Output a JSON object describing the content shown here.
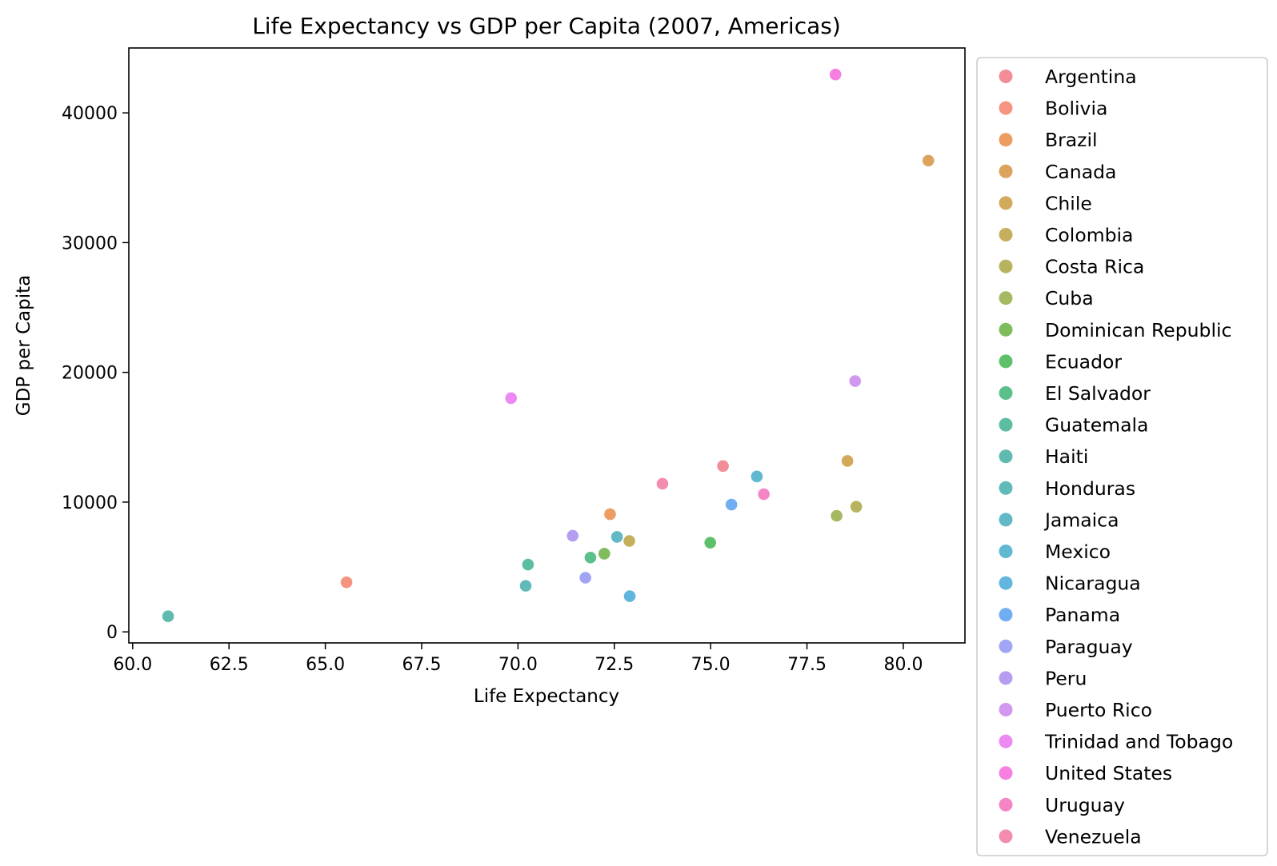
{
  "chart_data": {
    "type": "scatter",
    "title": "Life Expectancy vs GDP per Capita (2007, Americas)",
    "xlabel": "Life Expectancy",
    "ylabel": "GDP per Capita",
    "xlim": [
      59.9,
      81.6
    ],
    "ylim": [
      -850,
      45000
    ],
    "xticks": [
      60.0,
      62.5,
      65.0,
      67.5,
      70.0,
      72.5,
      75.0,
      77.5,
      80.0
    ],
    "xtick_labels": [
      "60.0",
      "62.5",
      "65.0",
      "67.5",
      "70.0",
      "72.5",
      "75.0",
      "77.5",
      "80.0"
    ],
    "yticks": [
      0,
      10000,
      20000,
      30000,
      40000
    ],
    "ytick_labels": [
      "0",
      "10000",
      "20000",
      "30000",
      "40000"
    ],
    "grid": false,
    "legend_position": "outside-right",
    "series": [
      {
        "name": "Argentina",
        "color": "#f0717d",
        "points": [
          [
            75.32,
            12779
          ]
        ]
      },
      {
        "name": "Bolivia",
        "color": "#f27a62",
        "points": [
          [
            65.55,
            3822
          ]
        ]
      },
      {
        "name": "Brazil",
        "color": "#e8853a",
        "points": [
          [
            72.39,
            9066
          ]
        ]
      },
      {
        "name": "Canada",
        "color": "#d38c33",
        "points": [
          [
            80.65,
            36319
          ]
        ]
      },
      {
        "name": "Chile",
        "color": "#c79533",
        "points": [
          [
            78.55,
            13172
          ]
        ]
      },
      {
        "name": "Colombia",
        "color": "#b69b35",
        "points": [
          [
            72.89,
            7007
          ]
        ]
      },
      {
        "name": "Costa Rica",
        "color": "#a6a036",
        "points": [
          [
            78.78,
            9645
          ]
        ]
      },
      {
        "name": "Cuba",
        "color": "#8ea63b",
        "points": [
          [
            78.27,
            8948
          ]
        ]
      },
      {
        "name": "Dominican Republic",
        "color": "#5eab35",
        "points": [
          [
            72.24,
            6025
          ]
        ]
      },
      {
        "name": "Ecuador",
        "color": "#36b145",
        "points": [
          [
            74.99,
            6873
          ]
        ]
      },
      {
        "name": "El Salvador",
        "color": "#33b06e",
        "points": [
          [
            71.88,
            5728
          ]
        ]
      },
      {
        "name": "Guatemala",
        "color": "#35ad8a",
        "points": [
          [
            70.26,
            5186
          ]
        ]
      },
      {
        "name": "Haiti",
        "color": "#37aa9b",
        "points": [
          [
            60.92,
            1202
          ]
        ]
      },
      {
        "name": "Honduras",
        "color": "#38a9a8",
        "points": [
          [
            70.2,
            3548
          ]
        ]
      },
      {
        "name": "Jamaica",
        "color": "#39a8b8",
        "points": [
          [
            72.57,
            7321
          ]
        ]
      },
      {
        "name": "Mexico",
        "color": "#3aa6c5",
        "points": [
          [
            76.2,
            11978
          ]
        ]
      },
      {
        "name": "Nicaragua",
        "color": "#3ba3d6",
        "points": [
          [
            72.9,
            2749
          ]
        ]
      },
      {
        "name": "Panama",
        "color": "#4d99ee",
        "points": [
          [
            75.54,
            9809
          ]
        ]
      },
      {
        "name": "Paraguay",
        "color": "#898ff0",
        "points": [
          [
            71.75,
            4173
          ]
        ]
      },
      {
        "name": "Peru",
        "color": "#a385ef",
        "points": [
          [
            71.42,
            7409
          ]
        ]
      },
      {
        "name": "Puerto Rico",
        "color": "#c67eec",
        "points": [
          [
            78.75,
            19329
          ]
        ]
      },
      {
        "name": "Trinidad and Tobago",
        "color": "#e76cf0",
        "points": [
          [
            69.82,
            18009
          ]
        ]
      },
      {
        "name": "United States",
        "color": "#f45fd9",
        "points": [
          [
            78.24,
            42952
          ]
        ]
      },
      {
        "name": "Uruguay",
        "color": "#f466b8",
        "points": [
          [
            76.38,
            10611
          ]
        ]
      },
      {
        "name": "Venezuela",
        "color": "#f06f9c",
        "points": [
          [
            73.75,
            11416
          ]
        ]
      }
    ]
  }
}
